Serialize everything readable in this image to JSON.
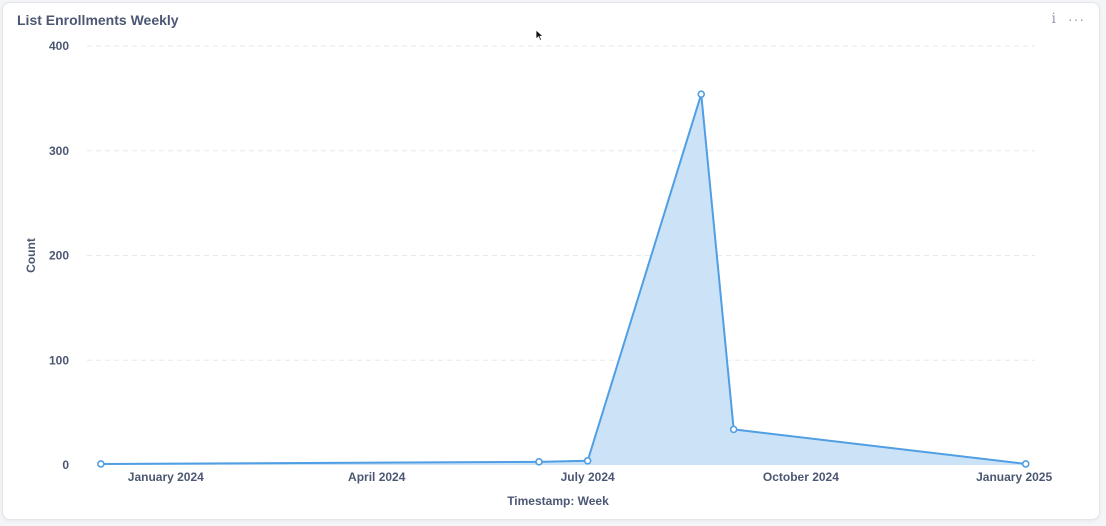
{
  "card": {
    "title": "List Enrollments Weekly",
    "info_icon": "info-icon",
    "more_icon": "more-options-icon"
  },
  "colors": {
    "line": "#509ee3",
    "fill": "#c9e1f7",
    "grid": "#e6e8eb",
    "text": "#4c5773"
  },
  "chart_data": {
    "type": "area",
    "title": "List Enrollments Weekly",
    "xlabel": "Timestamp: Week",
    "ylabel": "Count",
    "ylim": [
      0,
      400
    ],
    "yticks": [
      0,
      100,
      200,
      300,
      400
    ],
    "xlim": [
      "2023-11-28",
      "2025-01-10"
    ],
    "xticks": [
      {
        "date": "2024-01-01",
        "label": "January 2024"
      },
      {
        "date": "2024-04-01",
        "label": "April 2024"
      },
      {
        "date": "2024-07-01",
        "label": "July 2024"
      },
      {
        "date": "2024-10-01",
        "label": "October 2024"
      },
      {
        "date": "2025-01-01",
        "label": "January 2025"
      }
    ],
    "grid": true,
    "legend": "none",
    "series": [
      {
        "points": [
          {
            "x": "2023-12-04",
            "y": 1
          },
          {
            "x": "2024-06-10",
            "y": 3
          },
          {
            "x": "2024-07-01",
            "y": 4
          },
          {
            "x": "2024-08-19",
            "y": 354
          },
          {
            "x": "2024-09-02",
            "y": 34
          },
          {
            "x": "2025-01-06",
            "y": 1
          }
        ]
      }
    ]
  }
}
